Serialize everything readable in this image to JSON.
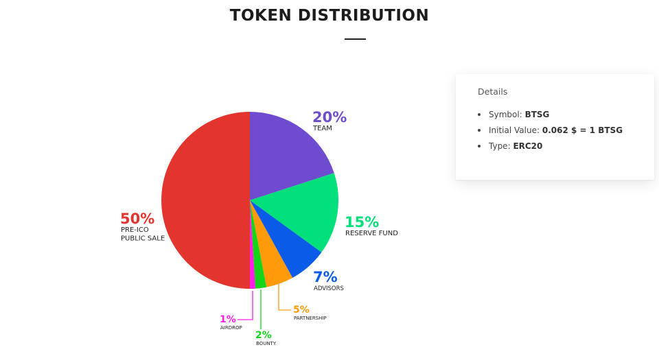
{
  "title": "TOKEN DISTRIBUTION",
  "details": {
    "title": "Details",
    "items": [
      {
        "label": "Symbol:",
        "value": "BTSG"
      },
      {
        "label": "Initial Value:",
        "value": "0.062 $ = 1 BTSG"
      },
      {
        "label": "Type:",
        "value": "ERC20"
      }
    ]
  },
  "chart_data": {
    "type": "pie",
    "start": "12 o'clock, clockwise",
    "slices": [
      {
        "key": "team",
        "value": 20,
        "percent_label": "20%",
        "label_lines": [
          "TEAM"
        ],
        "color": "#6f4bcf"
      },
      {
        "key": "reserve",
        "value": 15,
        "percent_label": "15%",
        "label_lines": [
          "RESERVE FUND"
        ],
        "color": "#00e07a"
      },
      {
        "key": "advisors",
        "value": 7,
        "percent_label": "7%",
        "label_lines": [
          "ADVISORS"
        ],
        "color": "#0a5ce8"
      },
      {
        "key": "partnership",
        "value": 5,
        "percent_label": "5%",
        "label_lines": [
          "PARTNERSHIP"
        ],
        "color": "#ff9a0a"
      },
      {
        "key": "bounty",
        "value": 2,
        "percent_label": "2%",
        "label_lines": [
          "BOUNTY"
        ],
        "color": "#16d41a"
      },
      {
        "key": "airdrop",
        "value": 1,
        "percent_label": "1%",
        "label_lines": [
          "AIRDROP"
        ],
        "color": "#ff20e8"
      },
      {
        "key": "preico",
        "value": 50,
        "percent_label": "50%",
        "label_lines": [
          "PRE-ICO",
          "PUBLIC SALE"
        ],
        "color": "#e2352d"
      }
    ]
  }
}
